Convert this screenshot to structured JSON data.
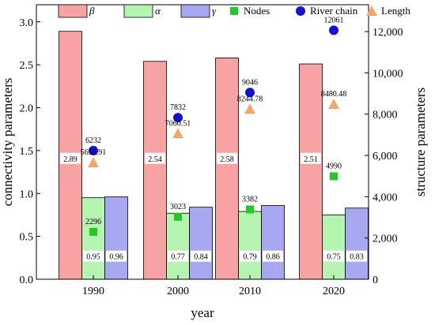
{
  "chart_data": {
    "type": "bar",
    "categories": [
      "1990",
      "2000",
      "2010",
      "2020"
    ],
    "xlabel": "year",
    "ylabel_left": "connectivity parameters",
    "ylabel_right": "structure parameters",
    "ylim_left": [
      0,
      3.2
    ],
    "ylim_right": [
      0,
      13300
    ],
    "yticks_left": [
      "0.0",
      "0.5",
      "1.0",
      "1.5",
      "2.0",
      "2.5",
      "3.0"
    ],
    "yticks_left_values": [
      0,
      0.5,
      1.0,
      1.5,
      2.0,
      2.5,
      3.0
    ],
    "yticks_right": [
      "0",
      "2,000",
      "4,000",
      "6,000",
      "8,000",
      "10,000",
      "12,000"
    ],
    "yticks_right_values": [
      0,
      2000,
      4000,
      6000,
      8000,
      10000,
      12000
    ],
    "bar_series": [
      {
        "name": "β",
        "color": "#f7a3a3",
        "values": [
          2.89,
          2.54,
          2.58,
          2.51
        ],
        "labels": [
          "2.89",
          "2.54",
          "2.58",
          "2.51"
        ]
      },
      {
        "name": "α",
        "color": "#b5f5b1",
        "values": [
          0.95,
          0.77,
          0.79,
          0.75
        ],
        "labels": [
          "0.95",
          "0.77",
          "0.79",
          "0.75"
        ]
      },
      {
        "name": "γ",
        "color": "#a8a8f2",
        "values": [
          0.96,
          0.84,
          0.86,
          0.83
        ],
        "labels": [
          "0.96",
          "0.84",
          "0.86",
          "0.83"
        ]
      }
    ],
    "point_series": [
      {
        "name": "Nodes",
        "marker": "square",
        "color": "#22c922",
        "values": [
          2296,
          3023,
          3382,
          4990
        ],
        "labels": [
          "2296",
          "3023",
          "3382",
          "4990"
        ]
      },
      {
        "name": "River chain",
        "marker": "circle",
        "color": "#1010d8",
        "values": [
          6232,
          7832,
          9046,
          12061
        ],
        "labels": [
          "6232",
          "7832",
          "9046",
          "12061"
        ]
      },
      {
        "name": "Length",
        "marker": "triangle",
        "color": "#f0a86a",
        "values": [
          5652.91,
          7060.51,
          8244.78,
          8480.48
        ],
        "labels": [
          "5652.91",
          "7060.51",
          "8244.78",
          "8480.48"
        ]
      }
    ],
    "legend_placement": "top",
    "grid": false
  }
}
